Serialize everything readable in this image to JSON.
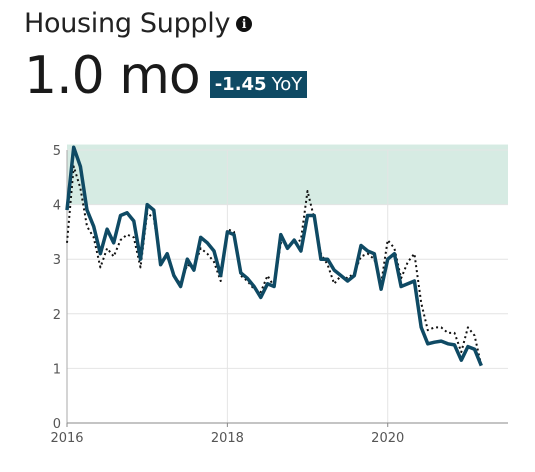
{
  "header": {
    "title": "Housing Supply",
    "info_icon": "info-circle-icon",
    "value": "1.0 mo",
    "change_value": "-1.45",
    "change_suffix": "YoY"
  },
  "colors": {
    "primary_line": "#0f4a64",
    "comparison_line": "#111111",
    "band_fill": "#d6ebe3",
    "badge_bg": "#0f4a64",
    "grid": "#e4e4e4"
  },
  "chart_data": {
    "type": "line",
    "title": "",
    "xlabel": "",
    "ylabel": "",
    "xlim": [
      2016,
      2021.5
    ],
    "ylim": [
      0,
      5
    ],
    "x_ticks": [
      2016,
      2018,
      2020
    ],
    "x_tick_labels": [
      "2016",
      "2018",
      "2020"
    ],
    "y_ticks": [
      0,
      1,
      2,
      3,
      4,
      5
    ],
    "y_tick_labels": [
      "0",
      "1",
      "2",
      "3",
      "4",
      "5"
    ],
    "grid": true,
    "shaded_band": {
      "y_from": 4,
      "y_to": 5.1
    },
    "series": [
      {
        "style": "solid",
        "x": [
          2016,
          2016.083,
          2016.167,
          2016.25,
          2016.333,
          2016.417,
          2016.5,
          2016.583,
          2016.667,
          2016.75,
          2016.833,
          2016.917,
          2017,
          2017.083,
          2017.167,
          2017.25,
          2017.333,
          2017.417,
          2017.5,
          2017.583,
          2017.667,
          2017.75,
          2017.833,
          2017.917,
          2018,
          2018.083,
          2018.167,
          2018.25,
          2018.333,
          2018.417,
          2018.5,
          2018.583,
          2018.667,
          2018.75,
          2018.833,
          2018.917,
          2019,
          2019.083,
          2019.167,
          2019.25,
          2019.333,
          2019.417,
          2019.5,
          2019.583,
          2019.667,
          2019.75,
          2019.833,
          2019.917,
          2020,
          2020.083,
          2020.167,
          2020.25,
          2020.333,
          2020.417,
          2020.5,
          2020.583,
          2020.667,
          2020.75,
          2020.833,
          2020.917,
          2021,
          2021.083,
          2021.167
        ],
        "y": [
          3.9,
          5.05,
          4.7,
          3.9,
          3.6,
          3.1,
          3.55,
          3.3,
          3.8,
          3.85,
          3.7,
          3.0,
          4.0,
          3.9,
          2.9,
          3.1,
          2.7,
          2.5,
          3.0,
          2.8,
          3.4,
          3.3,
          3.15,
          2.7,
          3.5,
          3.45,
          2.75,
          2.65,
          2.5,
          2.3,
          2.55,
          2.5,
          3.45,
          3.2,
          3.35,
          3.15,
          3.8,
          3.8,
          3.0,
          3.0,
          2.8,
          2.7,
          2.6,
          2.7,
          3.25,
          3.15,
          3.1,
          2.45,
          3.0,
          3.1,
          2.5,
          2.55,
          2.6,
          1.75,
          1.45,
          1.48,
          1.5,
          1.45,
          1.43,
          1.15,
          1.4,
          1.35,
          1.05
        ]
      },
      {
        "style": "dotted",
        "x": [
          2016,
          2016.083,
          2016.167,
          2016.25,
          2016.333,
          2016.417,
          2016.5,
          2016.583,
          2016.667,
          2016.75,
          2016.833,
          2016.917,
          2017,
          2017.083,
          2017.167,
          2017.25,
          2017.333,
          2017.417,
          2017.5,
          2017.583,
          2017.667,
          2017.75,
          2017.833,
          2017.917,
          2018,
          2018.083,
          2018.167,
          2018.25,
          2018.333,
          2018.417,
          2018.5,
          2018.583,
          2018.667,
          2018.75,
          2018.833,
          2018.917,
          2019,
          2019.083,
          2019.167,
          2019.25,
          2019.333,
          2019.417,
          2019.5,
          2019.583,
          2019.667,
          2019.75,
          2019.833,
          2019.917,
          2020,
          2020.083,
          2020.167,
          2020.25,
          2020.333,
          2020.417,
          2020.5,
          2020.583,
          2020.667,
          2020.75,
          2020.833,
          2020.917,
          2021,
          2021.083,
          2021.167
        ],
        "y": [
          3.3,
          4.7,
          4.3,
          3.6,
          3.4,
          2.85,
          3.2,
          3.05,
          3.35,
          3.45,
          3.4,
          2.85,
          3.85,
          3.75,
          2.95,
          3.05,
          2.7,
          2.55,
          2.9,
          2.85,
          3.2,
          3.1,
          2.95,
          2.6,
          3.55,
          3.5,
          2.7,
          2.6,
          2.45,
          2.4,
          2.7,
          2.5,
          3.3,
          3.25,
          3.3,
          3.35,
          4.25,
          3.75,
          3.1,
          2.9,
          2.55,
          2.7,
          2.65,
          2.75,
          3.05,
          3.1,
          3.0,
          2.55,
          3.35,
          3.2,
          2.65,
          2.95,
          3.1,
          2.2,
          1.7,
          1.75,
          1.75,
          1.65,
          1.65,
          1.3,
          1.75,
          1.6,
          1.05
        ]
      }
    ]
  }
}
